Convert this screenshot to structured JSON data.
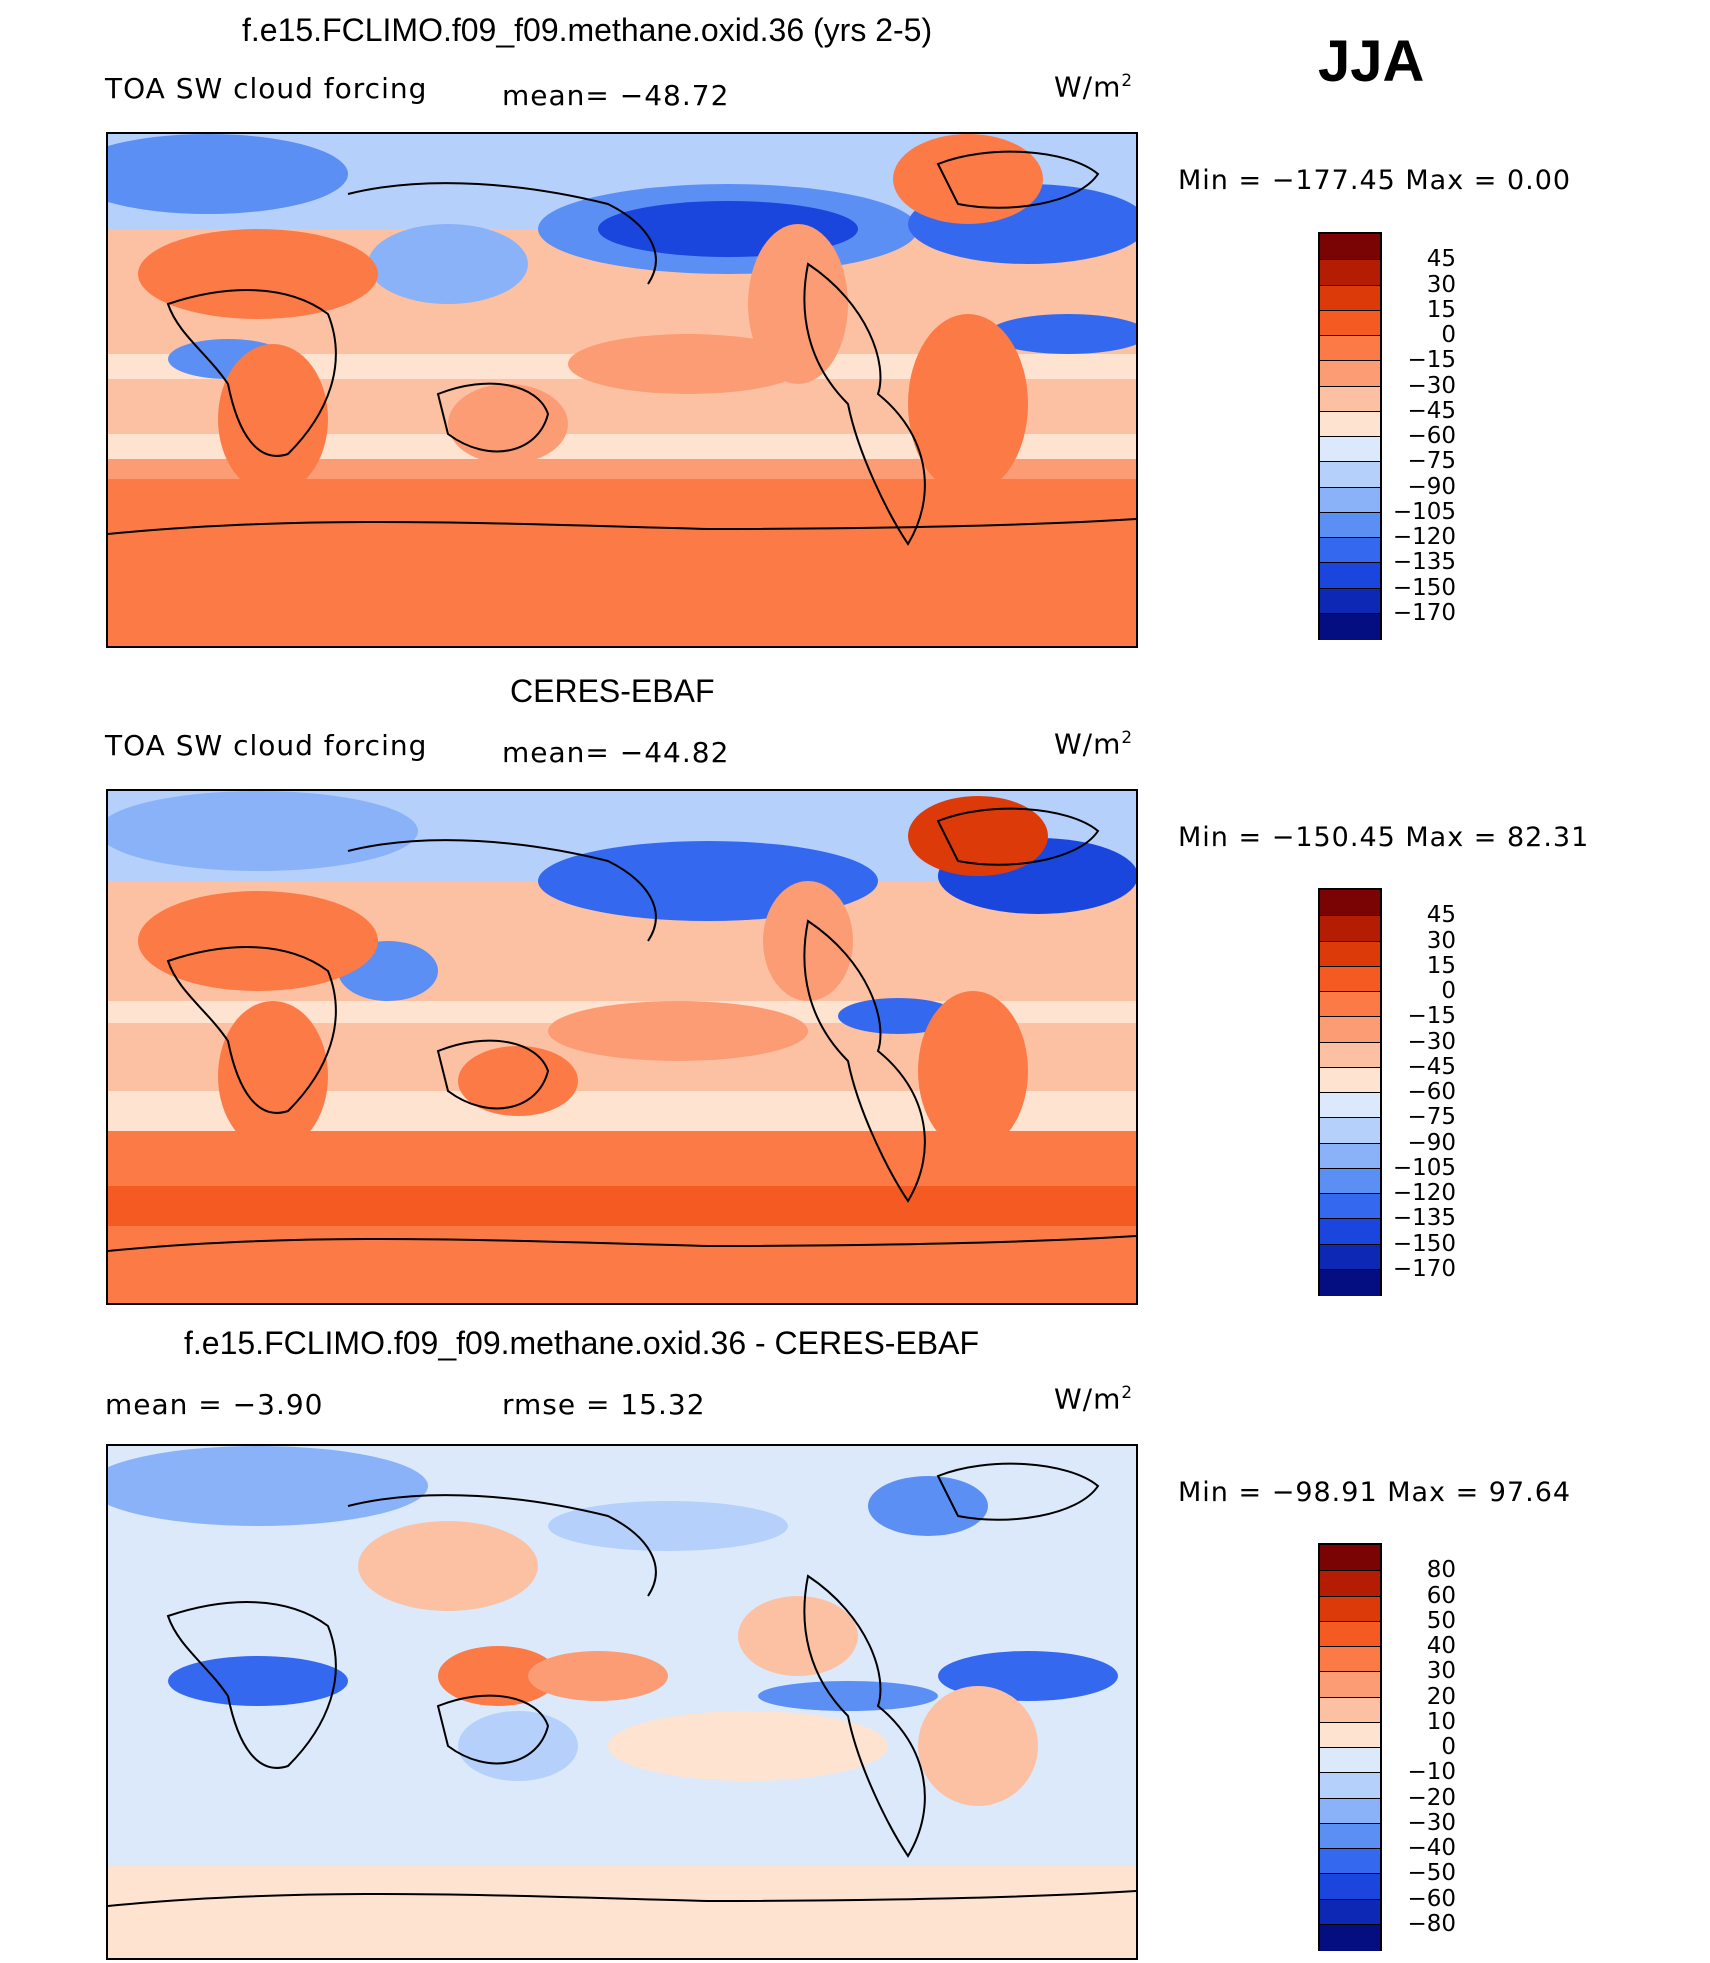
{
  "season": "JJA",
  "units_base": "W/m",
  "units_exp": "2",
  "panels": [
    {
      "title": "f.e15.FCLIMO.f09_f09.methane.oxid.36 (yrs 2-5)",
      "left_label": "TOA SW cloud forcing",
      "mid_label": "mean=  −48.72",
      "minmax": "Min  =  −177.45  Max  =     0.00",
      "colorbar_labels": [
        "45",
        "30",
        "15",
        "0",
        "−15",
        "−30",
        "−45",
        "−60",
        "−75",
        "−90",
        "−105",
        "−120",
        "−135",
        "−150",
        "−170"
      ],
      "colorbar_colors": [
        "#7a0403",
        "#b41c03",
        "#dd3a0a",
        "#f55a22",
        "#fb7a46",
        "#fc9c74",
        "#fcc1a3",
        "#fde3d0",
        "#dbe9fb",
        "#b5d0fb",
        "#8ab2f8",
        "#5c8ff4",
        "#3469ef",
        "#1a46dd",
        "#0c28b5",
        "#040e80"
      ]
    },
    {
      "title": "CERES-EBAF",
      "left_label": "TOA SW cloud forcing",
      "mid_label": "mean=  −44.82",
      "minmax": "Min  =  −150.45  Max  =    82.31",
      "colorbar_labels": [
        "45",
        "30",
        "15",
        "0",
        "−15",
        "−30",
        "−45",
        "−60",
        "−75",
        "−90",
        "−105",
        "−120",
        "−135",
        "−150",
        "−170"
      ],
      "colorbar_colors": [
        "#7a0403",
        "#b41c03",
        "#dd3a0a",
        "#f55a22",
        "#fb7a46",
        "#fc9c74",
        "#fcc1a3",
        "#fde3d0",
        "#dbe9fb",
        "#b5d0fb",
        "#8ab2f8",
        "#5c8ff4",
        "#3469ef",
        "#1a46dd",
        "#0c28b5",
        "#040e80"
      ]
    },
    {
      "title": "f.e15.FCLIMO.f09_f09.methane.oxid.36 - CERES-EBAF",
      "left_label": "mean  =    −3.90",
      "mid_label": "rmse  =    15.32",
      "minmax": "Min  =  −98.91  Max  =    97.64",
      "colorbar_labels": [
        "80",
        "60",
        "50",
        "40",
        "30",
        "20",
        "10",
        "0",
        "−10",
        "−20",
        "−30",
        "−40",
        "−50",
        "−60",
        "−80"
      ],
      "colorbar_colors": [
        "#7a0403",
        "#b41c03",
        "#dd3a0a",
        "#f55a22",
        "#fb7a46",
        "#fc9c74",
        "#fcc1a3",
        "#fde3d0",
        "#dbe9fb",
        "#b5d0fb",
        "#8ab2f8",
        "#5c8ff4",
        "#3469ef",
        "#1a46dd",
        "#0c28b5",
        "#040e80"
      ]
    }
  ]
}
